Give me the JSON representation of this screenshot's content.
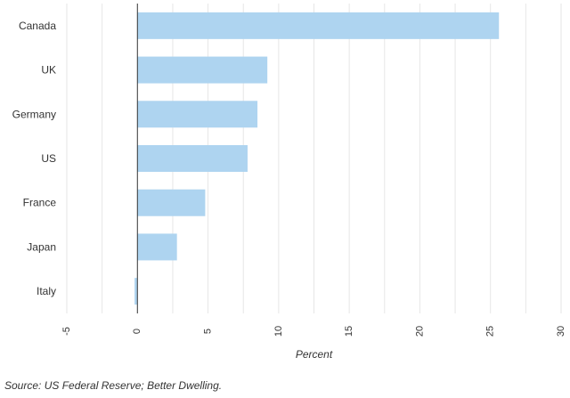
{
  "chart_data": {
    "type": "bar",
    "orientation": "horizontal",
    "categories": [
      "Canada",
      "UK",
      "Germany",
      "US",
      "France",
      "Japan",
      "Italy"
    ],
    "values": [
      25.6,
      9.2,
      8.5,
      7.8,
      4.8,
      2.8,
      -0.2
    ],
    "xlabel": "Percent",
    "xlim": [
      -5,
      30
    ],
    "xticks": [
      -5,
      0,
      5,
      10,
      15,
      20,
      25,
      30
    ],
    "grid": true,
    "bar_color": "#aed4f0",
    "zero_line_color": "#333333"
  },
  "source": "Source: US Federal Reserve; Better Dwelling."
}
